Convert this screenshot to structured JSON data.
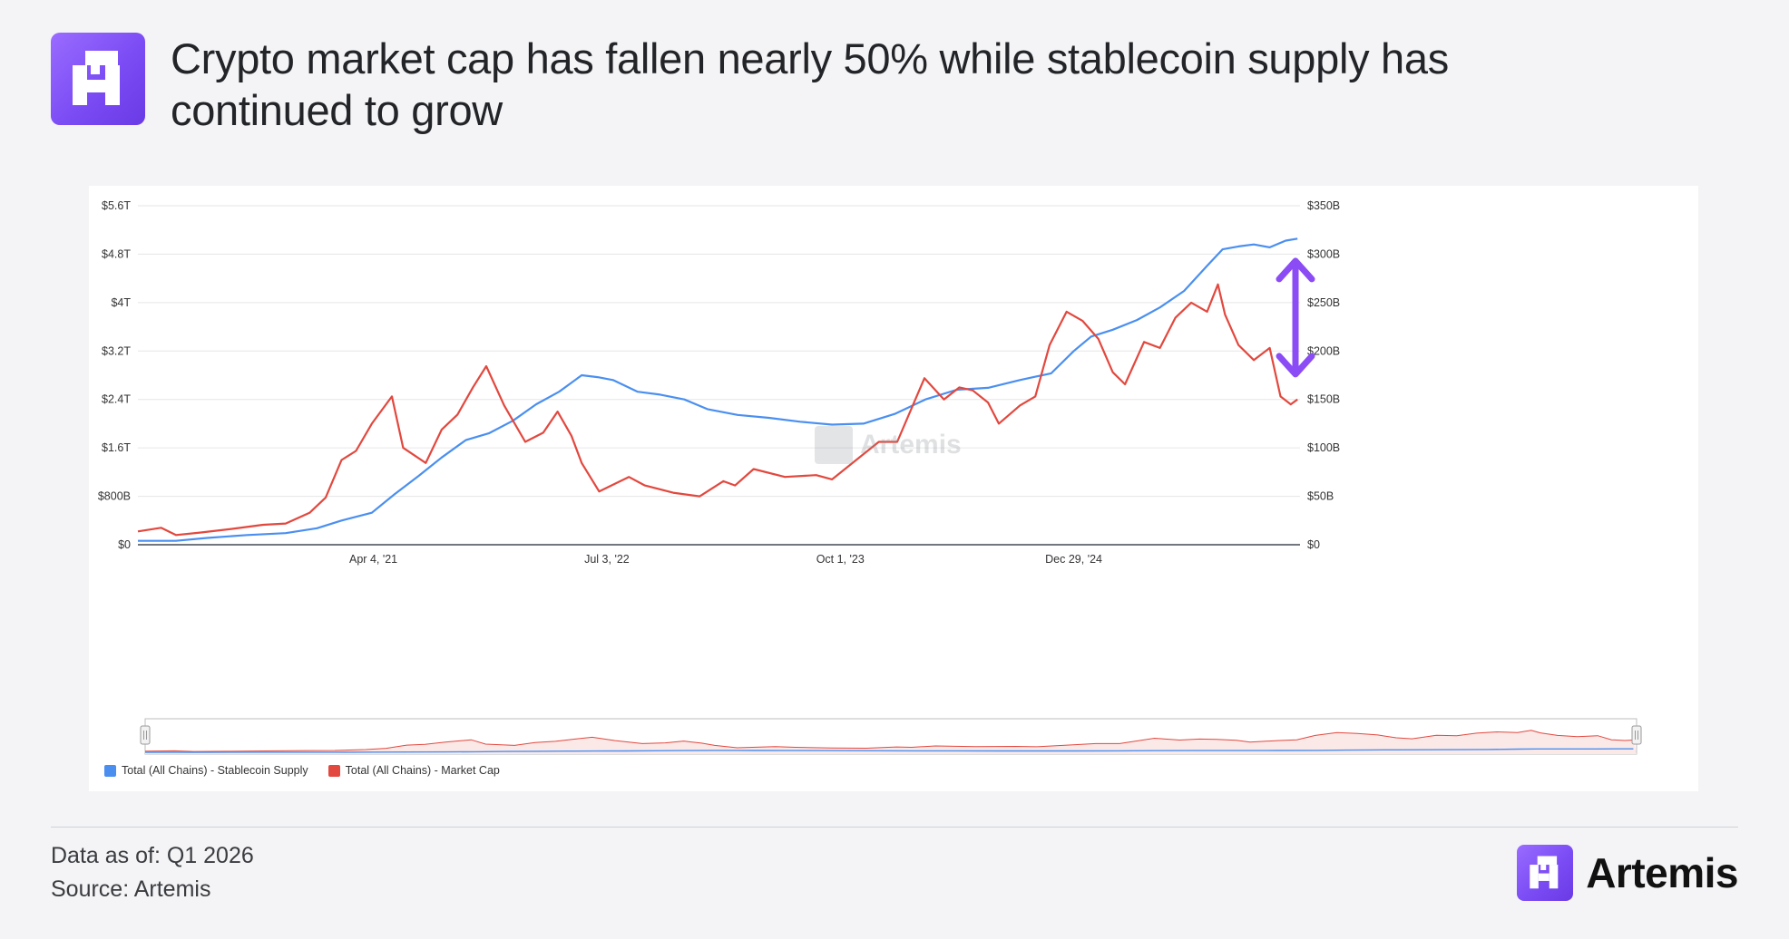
{
  "header": {
    "title": "Crypto market cap has fallen nearly 50% while stablecoin supply has continued to grow"
  },
  "watermark": {
    "text": "Artemis"
  },
  "colors": {
    "accent": "#7b4cf4",
    "stablecoin": "#4a8ff0",
    "market_cap": "#e2483e",
    "arrow": "#8b4cf5"
  },
  "legend": {
    "items": [
      {
        "label": "Total (All Chains) - Stablecoin Supply",
        "color": "#4a8ff0"
      },
      {
        "label": "Total (All Chains) - Market Cap",
        "color": "#e2483e"
      }
    ]
  },
  "footer": {
    "data_as_of": "Data as of: Q1 2026",
    "source": "Source: Artemis",
    "brand_name": "Artemis"
  },
  "chart_data": {
    "type": "line",
    "title": "Crypto market cap has fallen nearly 50% while stablecoin supply has continued to grow",
    "x_tick_labels": [
      "Apr 4, '21",
      "Jul 3, '22",
      "Oct 1, '23",
      "Dec 29, '24"
    ],
    "x_ticks": [
      "2021-04-04",
      "2022-07-03",
      "2023-10-01",
      "2024-12-29"
    ],
    "xlim": [
      "2020-01-01",
      "2026-03-15"
    ],
    "y_left": {
      "ticks": [
        "$0",
        "$800B",
        "$1.6T",
        "$2.4T",
        "$3.2T",
        "$4T",
        "$4.8T",
        "$5.6T"
      ],
      "tick_values": [
        0,
        0.8,
        1.6,
        2.4,
        3.2,
        4.0,
        4.8,
        5.6
      ],
      "unit": "trillion USD",
      "ylim": [
        0,
        5.6
      ]
    },
    "y_right": {
      "ticks": [
        "$0",
        "$50B",
        "$100B",
        "$150B",
        "$200B",
        "$250B",
        "$300B",
        "$350B"
      ],
      "tick_values": [
        0,
        50,
        100,
        150,
        200,
        250,
        300,
        350
      ],
      "unit": "billion USD",
      "ylim": [
        0,
        350
      ]
    },
    "grid": true,
    "legend_position": "bottom-left",
    "annotation": "double-headed arrow between the two series at the latest date",
    "series": [
      {
        "name": "Total (All Chains) - Stablecoin Supply",
        "axis": "right",
        "color": "#4a8ff0",
        "points": [
          [
            "2020-01-01",
            4
          ],
          [
            "2020-03-15",
            4
          ],
          [
            "2020-05-15",
            7
          ],
          [
            "2020-08-01",
            10
          ],
          [
            "2020-10-15",
            12
          ],
          [
            "2020-12-15",
            17
          ],
          [
            "2021-02-01",
            25
          ],
          [
            "2021-04-01",
            33
          ],
          [
            "2021-05-15",
            52
          ],
          [
            "2021-07-01",
            71
          ],
          [
            "2021-08-15",
            90
          ],
          [
            "2021-10-01",
            108
          ],
          [
            "2021-11-15",
            115
          ],
          [
            "2022-01-01",
            128
          ],
          [
            "2022-02-15",
            145
          ],
          [
            "2022-04-01",
            158
          ],
          [
            "2022-05-15",
            175
          ],
          [
            "2022-06-15",
            173
          ],
          [
            "2022-07-15",
            170
          ],
          [
            "2022-09-01",
            158
          ],
          [
            "2022-10-15",
            155
          ],
          [
            "2022-12-01",
            150
          ],
          [
            "2023-01-15",
            140
          ],
          [
            "2023-03-15",
            134
          ],
          [
            "2023-05-15",
            131
          ],
          [
            "2023-07-15",
            127
          ],
          [
            "2023-09-15",
            124
          ],
          [
            "2023-11-15",
            125
          ],
          [
            "2024-01-15",
            135
          ],
          [
            "2024-03-15",
            150
          ],
          [
            "2024-05-15",
            160
          ],
          [
            "2024-07-15",
            162
          ],
          [
            "2024-09-15",
            170
          ],
          [
            "2024-11-15",
            177
          ],
          [
            "2024-12-29",
            200
          ],
          [
            "2025-02-01",
            215
          ],
          [
            "2025-03-15",
            222
          ],
          [
            "2025-05-01",
            232
          ],
          [
            "2025-06-15",
            245
          ],
          [
            "2025-08-01",
            262
          ],
          [
            "2025-09-15",
            288
          ],
          [
            "2025-10-15",
            305
          ],
          [
            "2025-11-15",
            308
          ],
          [
            "2025-12-15",
            310
          ],
          [
            "2026-01-15",
            307
          ],
          [
            "2026-02-15",
            314
          ],
          [
            "2026-03-10",
            316
          ]
        ]
      },
      {
        "name": "Total (All Chains) - Market Cap",
        "axis": "left",
        "color": "#e2483e",
        "points": [
          [
            "2020-01-01",
            0.22
          ],
          [
            "2020-02-15",
            0.28
          ],
          [
            "2020-03-15",
            0.16
          ],
          [
            "2020-05-01",
            0.2
          ],
          [
            "2020-07-01",
            0.26
          ],
          [
            "2020-09-01",
            0.33
          ],
          [
            "2020-10-15",
            0.35
          ],
          [
            "2020-12-01",
            0.53
          ],
          [
            "2021-01-01",
            0.78
          ],
          [
            "2021-02-01",
            1.4
          ],
          [
            "2021-03-01",
            1.55
          ],
          [
            "2021-04-01",
            2.0
          ],
          [
            "2021-05-10",
            2.45
          ],
          [
            "2021-06-01",
            1.6
          ],
          [
            "2021-07-15",
            1.35
          ],
          [
            "2021-08-15",
            1.9
          ],
          [
            "2021-09-15",
            2.15
          ],
          [
            "2021-10-15",
            2.6
          ],
          [
            "2021-11-10",
            2.95
          ],
          [
            "2021-12-15",
            2.3
          ],
          [
            "2022-01-25",
            1.7
          ],
          [
            "2022-03-01",
            1.85
          ],
          [
            "2022-03-29",
            2.2
          ],
          [
            "2022-04-25",
            1.8
          ],
          [
            "2022-05-15",
            1.35
          ],
          [
            "2022-06-18",
            0.88
          ],
          [
            "2022-08-15",
            1.12
          ],
          [
            "2022-09-15",
            0.98
          ],
          [
            "2022-11-09",
            0.86
          ],
          [
            "2022-12-31",
            0.8
          ],
          [
            "2023-02-15",
            1.05
          ],
          [
            "2023-03-10",
            0.98
          ],
          [
            "2023-04-15",
            1.25
          ],
          [
            "2023-06-15",
            1.12
          ],
          [
            "2023-08-15",
            1.15
          ],
          [
            "2023-09-15",
            1.08
          ],
          [
            "2023-11-01",
            1.4
          ],
          [
            "2023-12-15",
            1.7
          ],
          [
            "2024-01-20",
            1.7
          ],
          [
            "2024-03-13",
            2.75
          ],
          [
            "2024-04-20",
            2.4
          ],
          [
            "2024-05-20",
            2.6
          ],
          [
            "2024-06-15",
            2.55
          ],
          [
            "2024-07-15",
            2.35
          ],
          [
            "2024-08-05",
            2.0
          ],
          [
            "2024-09-15",
            2.3
          ],
          [
            "2024-10-15",
            2.45
          ],
          [
            "2024-11-12",
            3.3
          ],
          [
            "2024-12-15",
            3.85
          ],
          [
            "2025-01-15",
            3.7
          ],
          [
            "2025-02-15",
            3.4
          ],
          [
            "2025-03-15",
            2.85
          ],
          [
            "2025-04-08",
            2.65
          ],
          [
            "2025-05-15",
            3.35
          ],
          [
            "2025-06-15",
            3.25
          ],
          [
            "2025-07-15",
            3.75
          ],
          [
            "2025-08-15",
            4.0
          ],
          [
            "2025-09-15",
            3.85
          ],
          [
            "2025-10-06",
            4.3
          ],
          [
            "2025-10-20",
            3.8
          ],
          [
            "2025-11-15",
            3.3
          ],
          [
            "2025-12-15",
            3.05
          ],
          [
            "2026-01-15",
            3.25
          ],
          [
            "2026-02-05",
            2.45
          ],
          [
            "2026-02-25",
            2.32
          ],
          [
            "2026-03-10",
            2.4
          ]
        ]
      }
    ]
  }
}
